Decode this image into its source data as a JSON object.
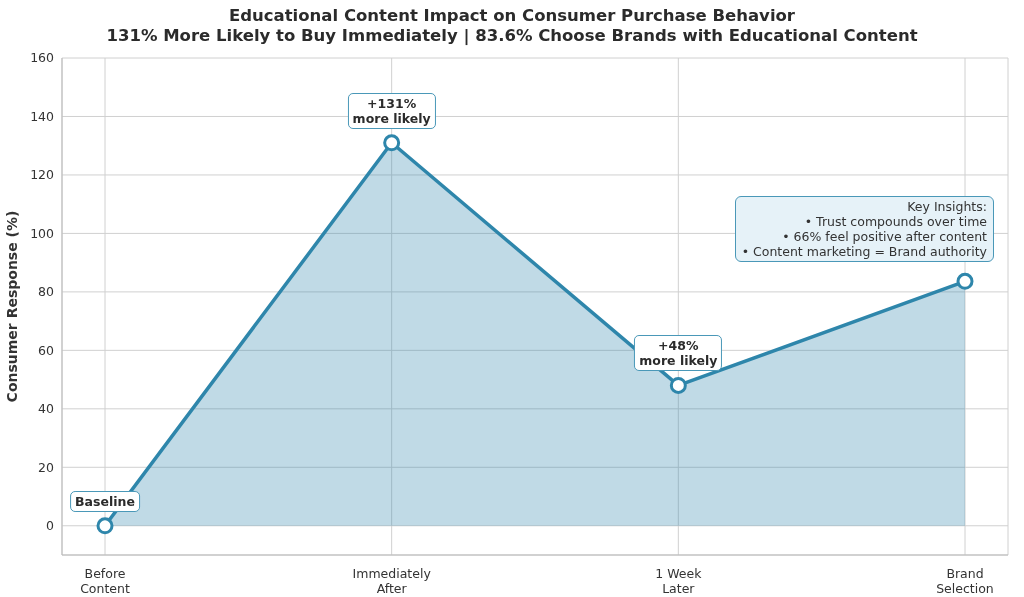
{
  "chart_data": {
    "type": "area",
    "title": "Educational Content Impact on Consumer Purchase Behavior",
    "subtitle": "131% More Likely to Buy Immediately | 83.6% Choose Brands with Educational Content",
    "ylabel": "Consumer Response (%)",
    "categories": [
      "Before\nContent",
      "Immediately\nAfter",
      "1 Week\nLater",
      "Brand\nSelection"
    ],
    "series": [
      {
        "color": "#2e86ab",
        "values": [
          0,
          131,
          48,
          83.6
        ]
      }
    ],
    "ylim": [
      -10,
      160
    ],
    "yticks": [
      0,
      20,
      40,
      60,
      80,
      100,
      120,
      140,
      160
    ],
    "grid": true,
    "marker": "circle",
    "line_style": "solid",
    "annotations": [
      {
        "text": "Baseline",
        "x": "Before\nContent",
        "y": 0
      },
      {
        "text": "+131%\nmore likely",
        "x": "Immediately\nAfter",
        "y": 131
      },
      {
        "text": "+48%\nmore likely",
        "x": "1 Week\nLater",
        "y": 48
      },
      "Key Insights:\n• Trust compounds over time\n• 66% feel positive after content\n• Content marketing = Brand authority"
    ]
  }
}
